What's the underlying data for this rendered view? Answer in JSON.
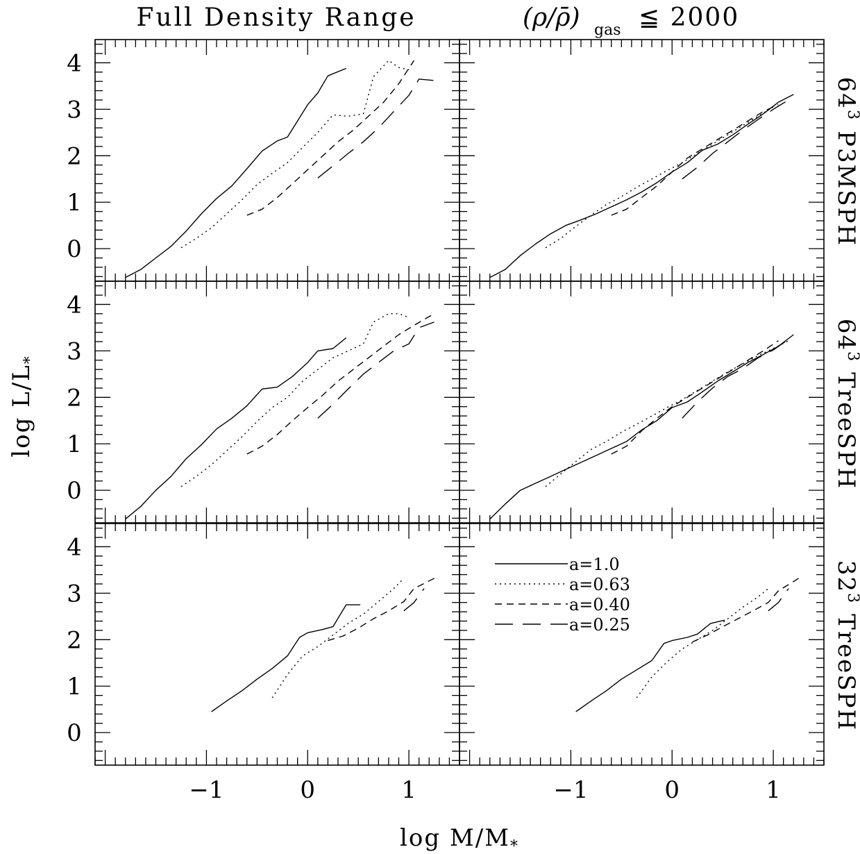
{
  "col_titles": {
    "left": "Full Density Range",
    "right_main": "(ρ/ρ̄)",
    "right_sub": "gas",
    "right_rel": "≦ 2000"
  },
  "row_labels": [
    {
      "base": "64",
      "exp": "3",
      "name": "P3MSPH"
    },
    {
      "base": "64",
      "exp": "3",
      "name": "TreeSPH"
    },
    {
      "base": "32",
      "exp": "3",
      "name": "TreeSPH"
    }
  ],
  "axes": {
    "ylabel_main": "log L/L",
    "ylabel_sub": "*",
    "xlabel_main": "log M/M",
    "xlabel_sub": "*",
    "xlim": [
      -2.1,
      1.5
    ],
    "ylim": [
      -0.7,
      4.5
    ],
    "x_ticks": [
      -1,
      0,
      1
    ],
    "x_tick_labels": [
      "−1",
      "0",
      "1"
    ],
    "y_ticks": [
      0,
      1,
      2,
      3,
      4
    ],
    "y_tick_labels": [
      "0",
      "1",
      "2",
      "3",
      "4"
    ]
  },
  "legend": [
    {
      "label": "a=1.0",
      "style": "solid"
    },
    {
      "label": "a=0.63",
      "style": "dotted"
    },
    {
      "label": "a=0.40",
      "style": "short-dash"
    },
    {
      "label": "a=0.25",
      "style": "long-dash"
    }
  ],
  "chart_data": [
    {
      "type": "line",
      "panel": "64^3 P3MSPH, full density range",
      "xlim": [
        -2.1,
        1.5
      ],
      "ylim": [
        -0.7,
        4.5
      ],
      "series": [
        {
          "name": "a=1.0",
          "style": "solid",
          "x": [
            -1.8,
            -1.65,
            -1.5,
            -1.35,
            -1.2,
            -1.05,
            -0.9,
            -0.75,
            -0.6,
            -0.45,
            -0.3,
            -0.2,
            -0.1,
            0.0,
            0.1,
            0.2,
            0.38
          ],
          "y": [
            -0.62,
            -0.45,
            -0.2,
            0.05,
            0.38,
            0.75,
            1.08,
            1.35,
            1.72,
            2.1,
            2.32,
            2.4,
            2.75,
            3.1,
            3.35,
            3.72,
            3.88
          ]
        },
        {
          "name": "a=0.63",
          "style": "dotted",
          "x": [
            -1.25,
            -1.1,
            -0.95,
            -0.8,
            -0.65,
            -0.5,
            -0.35,
            -0.2,
            -0.05,
            0.1,
            0.25,
            0.4,
            0.55,
            0.65,
            0.8,
            0.9,
            1.0
          ],
          "y": [
            0.02,
            0.22,
            0.45,
            0.75,
            1.05,
            1.38,
            1.62,
            1.85,
            2.18,
            2.5,
            2.88,
            2.85,
            2.9,
            3.7,
            4.05,
            3.9,
            3.85
          ]
        },
        {
          "name": "a=0.40",
          "style": "short-dash",
          "x": [
            -0.6,
            -0.45,
            -0.3,
            -0.15,
            0.0,
            0.15,
            0.3,
            0.45,
            0.6,
            0.75,
            0.9,
            1.05
          ],
          "y": [
            0.72,
            0.85,
            1.1,
            1.4,
            1.7,
            2.0,
            2.3,
            2.55,
            2.85,
            3.15,
            3.55,
            4.05
          ]
        },
        {
          "name": "a=0.25",
          "style": "long-dash",
          "x": [
            0.1,
            0.25,
            0.4,
            0.55,
            0.7,
            0.85,
            1.0,
            1.1,
            1.25
          ],
          "y": [
            1.52,
            1.78,
            2.05,
            2.3,
            2.6,
            2.95,
            3.3,
            3.65,
            3.62
          ]
        }
      ]
    },
    {
      "type": "line",
      "panel": "64^3 P3MSPH, density ≤ 2000",
      "xlim": [
        -2.1,
        1.5
      ],
      "ylim": [
        -0.7,
        4.5
      ],
      "series": [
        {
          "name": "a=1.0",
          "style": "solid",
          "x": [
            -1.8,
            -1.65,
            -1.5,
            -1.35,
            -1.2,
            -1.05,
            -0.9,
            -0.75,
            -0.6,
            -0.45,
            -0.3,
            -0.15,
            0.0,
            0.15,
            0.3,
            0.45,
            0.6,
            0.75,
            0.9,
            1.05,
            1.2
          ],
          "y": [
            -0.62,
            -0.45,
            -0.15,
            0.1,
            0.32,
            0.5,
            0.62,
            0.75,
            0.9,
            1.05,
            1.22,
            1.42,
            1.65,
            1.85,
            2.12,
            2.25,
            2.45,
            2.68,
            2.9,
            3.15,
            3.32
          ]
        },
        {
          "name": "a=0.63",
          "style": "dotted",
          "x": [
            -1.25,
            -1.1,
            -0.95,
            -0.8,
            -0.65,
            -0.5,
            -0.35,
            -0.2,
            -0.05,
            0.1,
            0.25,
            0.4,
            0.55,
            0.7,
            0.85,
            1.0
          ],
          "y": [
            0.02,
            0.22,
            0.48,
            0.72,
            0.95,
            1.12,
            1.32,
            1.5,
            1.68,
            1.85,
            2.05,
            2.25,
            2.45,
            2.65,
            2.85,
            3.05
          ]
        },
        {
          "name": "a=0.40",
          "style": "short-dash",
          "x": [
            -0.6,
            -0.45,
            -0.3,
            -0.15,
            0.0,
            0.15,
            0.3,
            0.45,
            0.6,
            0.75,
            0.9,
            1.05
          ],
          "y": [
            0.72,
            0.85,
            1.1,
            1.35,
            1.65,
            1.95,
            2.15,
            2.35,
            2.55,
            2.75,
            2.95,
            3.1
          ]
        },
        {
          "name": "a=0.25",
          "style": "long-dash",
          "x": [
            0.1,
            0.25,
            0.4,
            0.55,
            0.7,
            0.85,
            1.0,
            1.15
          ],
          "y": [
            1.5,
            1.75,
            2.05,
            2.3,
            2.55,
            2.78,
            3.0,
            3.2
          ]
        }
      ]
    },
    {
      "type": "line",
      "panel": "64^3 TreeSPH, full density range",
      "xlim": [
        -2.1,
        1.5
      ],
      "ylim": [
        -0.7,
        4.5
      ],
      "series": [
        {
          "name": "a=1.0",
          "style": "solid",
          "x": [
            -1.8,
            -1.65,
            -1.5,
            -1.35,
            -1.2,
            -1.05,
            -0.9,
            -0.75,
            -0.6,
            -0.45,
            -0.3,
            -0.15,
            0.0,
            0.1,
            0.25,
            0.38
          ],
          "y": [
            -0.62,
            -0.35,
            0.0,
            0.3,
            0.68,
            0.98,
            1.32,
            1.55,
            1.82,
            2.18,
            2.22,
            2.45,
            2.75,
            3.0,
            3.05,
            3.28
          ]
        },
        {
          "name": "a=0.63",
          "style": "dotted",
          "x": [
            -1.25,
            -1.1,
            -0.95,
            -0.8,
            -0.65,
            -0.5,
            -0.35,
            -0.2,
            -0.05,
            0.1,
            0.25,
            0.4,
            0.55,
            0.65,
            0.8,
            0.9,
            1.0
          ],
          "y": [
            0.08,
            0.3,
            0.55,
            0.85,
            1.15,
            1.48,
            1.78,
            2.0,
            2.35,
            2.6,
            2.85,
            3.0,
            3.15,
            3.62,
            3.8,
            3.8,
            3.72
          ]
        },
        {
          "name": "a=0.40",
          "style": "short-dash",
          "x": [
            -0.6,
            -0.45,
            -0.3,
            -0.15,
            0.0,
            0.15,
            0.3,
            0.45,
            0.6,
            0.75,
            0.9,
            1.05,
            1.25
          ],
          "y": [
            0.78,
            0.95,
            1.2,
            1.5,
            1.78,
            2.05,
            2.35,
            2.6,
            2.85,
            3.1,
            3.35,
            3.55,
            3.8
          ]
        },
        {
          "name": "a=0.25",
          "style": "long-dash",
          "x": [
            0.1,
            0.25,
            0.4,
            0.55,
            0.7,
            0.85,
            1.0,
            1.1,
            1.25
          ],
          "y": [
            1.55,
            1.85,
            2.18,
            2.5,
            2.75,
            3.0,
            3.15,
            3.5,
            3.62
          ]
        }
      ]
    },
    {
      "type": "line",
      "panel": "64^3 TreeSPH, density ≤ 2000",
      "xlim": [
        -2.1,
        1.5
      ],
      "ylim": [
        -0.7,
        4.5
      ],
      "series": [
        {
          "name": "a=1.0",
          "style": "solid",
          "x": [
            -1.8,
            -1.65,
            -1.5,
            -1.35,
            -1.2,
            -1.05,
            -0.9,
            -0.75,
            -0.6,
            -0.45,
            -0.3,
            -0.15,
            0.0,
            0.15,
            0.3,
            0.45,
            0.6,
            0.75,
            0.9,
            1.05,
            1.2
          ],
          "y": [
            -0.62,
            -0.3,
            0.0,
            0.15,
            0.3,
            0.45,
            0.6,
            0.75,
            0.9,
            1.05,
            1.3,
            1.5,
            1.78,
            1.9,
            2.12,
            2.35,
            2.55,
            2.75,
            2.92,
            3.1,
            3.35
          ]
        },
        {
          "name": "a=0.63",
          "style": "dotted",
          "x": [
            -1.25,
            -1.1,
            -0.95,
            -0.8,
            -0.65,
            -0.5,
            -0.35,
            -0.2,
            -0.05,
            0.1,
            0.25,
            0.4,
            0.55,
            0.7,
            0.85,
            1.0,
            1.15
          ],
          "y": [
            0.08,
            0.35,
            0.62,
            0.88,
            1.05,
            1.25,
            1.42,
            1.6,
            1.78,
            1.95,
            2.15,
            2.35,
            2.55,
            2.72,
            2.9,
            3.05,
            3.22
          ]
        },
        {
          "name": "a=0.40",
          "style": "short-dash",
          "x": [
            -0.6,
            -0.45,
            -0.3,
            -0.15,
            0.0,
            0.15,
            0.3,
            0.45,
            0.6,
            0.75,
            0.9,
            1.05
          ],
          "y": [
            0.78,
            0.95,
            1.28,
            1.55,
            1.8,
            2.0,
            2.2,
            2.4,
            2.6,
            2.8,
            3.0,
            3.22
          ]
        },
        {
          "name": "a=0.25",
          "style": "long-dash",
          "x": [
            0.1,
            0.25,
            0.4,
            0.55,
            0.7,
            0.85,
            1.0,
            1.15
          ],
          "y": [
            1.55,
            1.9,
            2.2,
            2.45,
            2.62,
            2.85,
            3.02,
            3.25
          ]
        }
      ]
    },
    {
      "type": "line",
      "panel": "32^3 TreeSPH, full density range",
      "xlim": [
        -2.1,
        1.5
      ],
      "ylim": [
        -0.7,
        4.5
      ],
      "series": [
        {
          "name": "a=1.0",
          "style": "solid",
          "x": [
            -0.95,
            -0.8,
            -0.65,
            -0.5,
            -0.35,
            -0.2,
            -0.08,
            0.0,
            0.15,
            0.25,
            0.38,
            0.52
          ],
          "y": [
            0.45,
            0.68,
            0.9,
            1.15,
            1.38,
            1.65,
            2.05,
            2.15,
            2.22,
            2.28,
            2.75,
            2.75
          ]
        },
        {
          "name": "a=0.63",
          "style": "dotted",
          "x": [
            -0.35,
            -0.2,
            -0.05,
            0.1,
            0.25,
            0.4,
            0.55,
            0.7,
            0.85,
            0.95
          ],
          "y": [
            0.75,
            1.25,
            1.65,
            1.85,
            2.1,
            2.35,
            2.55,
            2.82,
            3.1,
            3.32
          ]
        },
        {
          "name": "a=0.40",
          "style": "short-dash",
          "x": [
            0.2,
            0.35,
            0.5,
            0.65,
            0.8,
            0.95,
            1.05,
            1.25
          ],
          "y": [
            1.98,
            2.08,
            2.25,
            2.45,
            2.62,
            2.82,
            3.1,
            3.32
          ]
        },
        {
          "name": "a=0.25",
          "style": "long-dash",
          "x": [
            0.95,
            1.05,
            1.15
          ],
          "y": [
            2.62,
            2.8,
            3.1
          ]
        }
      ]
    },
    {
      "type": "line",
      "panel": "32^3 TreeSPH, density ≤ 2000",
      "xlim": [
        -2.1,
        1.5
      ],
      "ylim": [
        -0.7,
        4.5
      ],
      "series": [
        {
          "name": "a=1.0",
          "style": "solid",
          "x": [
            -0.95,
            -0.8,
            -0.65,
            -0.5,
            -0.35,
            -0.2,
            -0.08,
            0.0,
            0.15,
            0.25,
            0.38,
            0.52
          ],
          "y": [
            0.45,
            0.68,
            0.9,
            1.15,
            1.35,
            1.55,
            1.92,
            1.98,
            2.05,
            2.12,
            2.35,
            2.42
          ]
        },
        {
          "name": "a=0.63",
          "style": "dotted",
          "x": [
            -0.35,
            -0.2,
            -0.05,
            0.1,
            0.25,
            0.4,
            0.55,
            0.7,
            0.85,
            0.95
          ],
          "y": [
            0.75,
            1.2,
            1.52,
            1.8,
            2.0,
            2.2,
            2.45,
            2.7,
            2.92,
            3.1
          ]
        },
        {
          "name": "a=0.40",
          "style": "short-dash",
          "x": [
            0.2,
            0.35,
            0.5,
            0.65,
            0.8,
            0.95,
            1.05,
            1.25
          ],
          "y": [
            1.95,
            2.1,
            2.28,
            2.45,
            2.62,
            2.8,
            3.05,
            3.32
          ]
        },
        {
          "name": "a=0.25",
          "style": "long-dash",
          "x": [
            0.95,
            1.05,
            1.15
          ],
          "y": [
            2.62,
            2.8,
            3.1
          ]
        }
      ]
    }
  ]
}
